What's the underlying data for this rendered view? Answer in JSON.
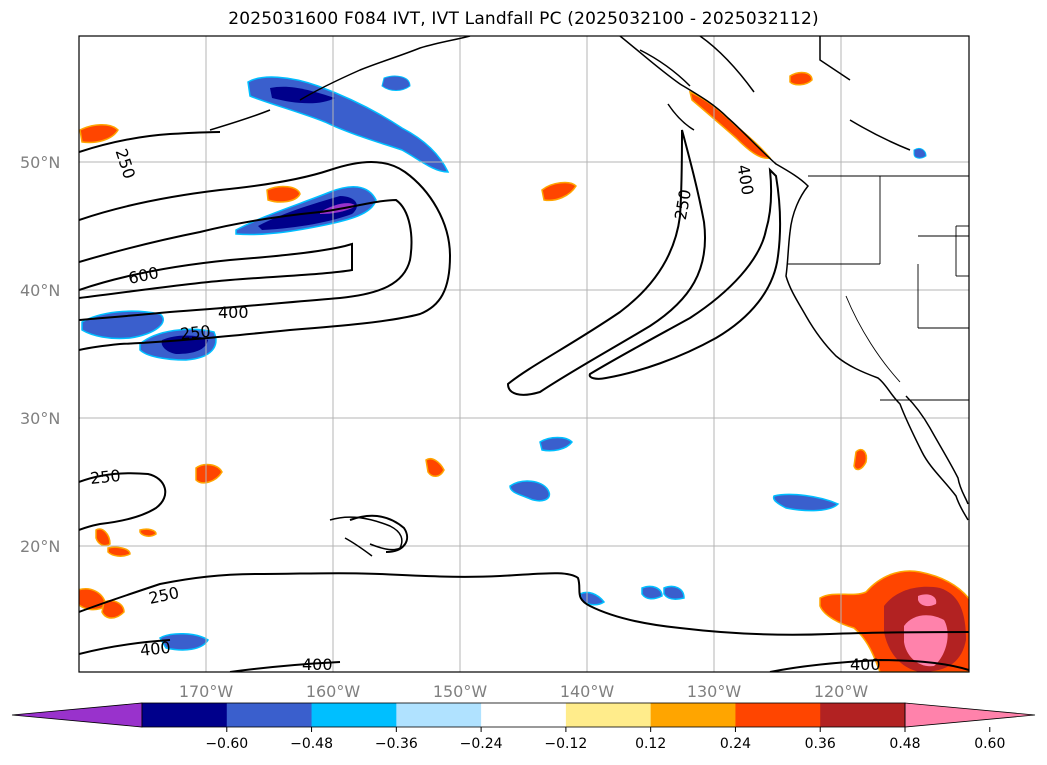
{
  "title": "2025031600 F084 IVT, IVT Landfall PC (2025032100 - 2025032112)",
  "lat_labels": [
    "50°N",
    "40°N",
    "30°N",
    "20°N"
  ],
  "lon_labels": [
    "170°W",
    "160°W",
    "150°W",
    "140°W",
    "130°W",
    "120°W"
  ],
  "contour_labels": [
    "250",
    "600",
    "400",
    "250",
    "250",
    "400",
    "250",
    "250",
    "400",
    "400",
    "400"
  ],
  "colorbar": {
    "colors": [
      "#9932CC",
      "#00008B",
      "#3A5FCD",
      "#00BFFF",
      "#B0E2FF",
      "#FFFFFF",
      "#FFEC8B",
      "#FFA500",
      "#FF4500",
      "#B22222",
      "#FF82AB"
    ],
    "tick_labels": [
      "−0.60",
      "−0.48",
      "−0.36",
      "−0.24",
      "−0.12",
      "0.12",
      "0.24",
      "0.36",
      "0.48",
      "0.60"
    ]
  }
}
